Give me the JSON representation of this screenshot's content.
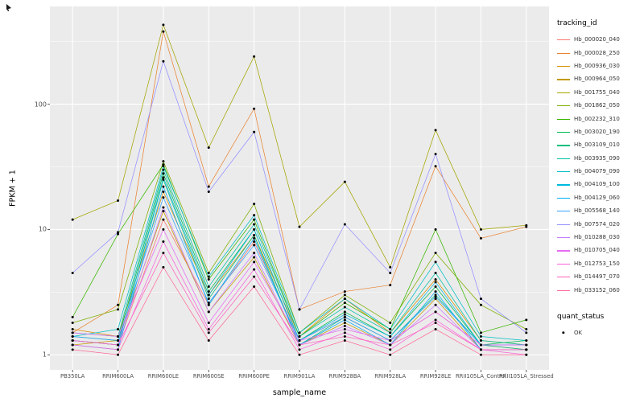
{
  "figure": {
    "panel_bg": "#EBEBEB",
    "grid_major": "#FFFFFF",
    "grid_minor": "#F7F7F7",
    "tick_color": "#333333",
    "point_color": "#000000"
  },
  "chart_data": {
    "type": "line",
    "title": "",
    "xlabel": "sample_name",
    "ylabel": "FPKM + 1",
    "y_scale": "log10",
    "ylim": [
      1,
      500
    ],
    "y_ticks": [
      1,
      10,
      100
    ],
    "y_tick_labels": [
      "1",
      "10",
      "100"
    ],
    "grid": true,
    "legend_position": "right",
    "legend_title": "tracking_id",
    "point_legend": {
      "title": "quant_status",
      "items": [
        "OK"
      ]
    },
    "categories": [
      "PB350LA",
      "RRIM600LA",
      "RRIM600LE",
      "RRIM600SE",
      "RRIM600PE",
      "RRIM901LA",
      "RRIM928BA",
      "RRIM928LA",
      "RRIM928LE",
      "RRII105LA_Control",
      "RRII105LA_Stressed"
    ],
    "series": [
      {
        "name": "Hb_000020_040",
        "color": "#F8766D",
        "values": [
          1.3,
          1.2,
          12,
          2.5,
          8,
          1.3,
          2.0,
          1.3,
          2.2,
          1.2,
          1.1
        ]
      },
      {
        "name": "Hb_000028_250",
        "color": "#EA8331",
        "values": [
          1.5,
          2.5,
          380,
          22,
          92,
          2.3,
          3.2,
          3.6,
          32,
          8.5,
          10.5
        ]
      },
      {
        "name": "Hb_000936_030",
        "color": "#D89000",
        "values": [
          1.6,
          1.4,
          20,
          3.0,
          9,
          1.4,
          2.8,
          1.5,
          4.0,
          1.3,
          1.2
        ]
      },
      {
        "name": "Hb_000964_050",
        "color": "#C49A00",
        "values": [
          1.2,
          1.3,
          14,
          2.2,
          6,
          1.2,
          1.8,
          1.2,
          2.8,
          1.1,
          1.1
        ]
      },
      {
        "name": "Hb_001755_040",
        "color": "#A3A500",
        "values": [
          12,
          17,
          430,
          45,
          240,
          10.5,
          24,
          5.0,
          62,
          10,
          10.8
        ]
      },
      {
        "name": "Hb_001862_050",
        "color": "#7CAE00",
        "values": [
          1.8,
          2.3,
          35,
          4.5,
          16,
          1.5,
          3.0,
          1.8,
          6.5,
          2.5,
          1.6
        ]
      },
      {
        "name": "Hb_002232_310",
        "color": "#39B600",
        "values": [
          2.0,
          9.2,
          33,
          4.0,
          12,
          1.4,
          2.6,
          1.6,
          10,
          1.5,
          1.9
        ]
      },
      {
        "name": "Hb_003020_190",
        "color": "#00BB4E",
        "values": [
          1.4,
          1.3,
          28,
          3.2,
          10,
          1.3,
          2.2,
          1.4,
          3.5,
          1.2,
          1.3
        ]
      },
      {
        "name": "Hb_003109_010",
        "color": "#00BF7D",
        "values": [
          1.3,
          1.2,
          25,
          2.8,
          9,
          1.2,
          2.0,
          1.3,
          3.0,
          1.2,
          1.1
        ]
      },
      {
        "name": "Hb_003935_090",
        "color": "#00C1A3",
        "values": [
          1.5,
          1.4,
          30,
          3.5,
          11,
          1.4,
          2.4,
          1.5,
          4.5,
          1.3,
          1.2
        ]
      },
      {
        "name": "Hb_004079_090",
        "color": "#00BFC4",
        "values": [
          1.4,
          1.6,
          32,
          4.2,
          13,
          1.5,
          2.8,
          1.6,
          5.5,
          1.4,
          1.3
        ]
      },
      {
        "name": "Hb_004109_100",
        "color": "#00BAE0",
        "values": [
          1.3,
          1.2,
          26,
          3.0,
          10,
          1.3,
          2.1,
          1.4,
          3.8,
          1.2,
          1.2
        ]
      },
      {
        "name": "Hb_004129_060",
        "color": "#00B0F6",
        "values": [
          1.2,
          1.1,
          22,
          2.5,
          8.5,
          1.2,
          1.9,
          1.2,
          3.2,
          1.1,
          1.1
        ]
      },
      {
        "name": "Hb_005568_140",
        "color": "#35A2FF",
        "values": [
          1.4,
          1.3,
          18,
          2.6,
          7.5,
          1.3,
          2.0,
          1.3,
          2.9,
          1.2,
          1.2
        ]
      },
      {
        "name": "Hb_007574_020",
        "color": "#9590FF",
        "values": [
          4.5,
          9.5,
          220,
          20,
          60,
          2.3,
          11,
          4.5,
          40,
          2.8,
          1.5
        ]
      },
      {
        "name": "Hb_010288_030",
        "color": "#C77CFF",
        "values": [
          1.3,
          1.2,
          15,
          2.2,
          6.5,
          1.2,
          1.7,
          1.2,
          2.5,
          1.1,
          1.1
        ]
      },
      {
        "name": "Hb_010705_040",
        "color": "#E76BF3",
        "values": [
          1.5,
          1.4,
          10,
          1.8,
          5.5,
          1.3,
          1.6,
          1.3,
          2.2,
          1.2,
          1.2
        ]
      },
      {
        "name": "Hb_012753_150",
        "color": "#FA62DB",
        "values": [
          1.2,
          1.1,
          8,
          1.6,
          4.8,
          1.1,
          1.5,
          1.1,
          1.9,
          1.1,
          1.0
        ]
      },
      {
        "name": "Hb_014497_070",
        "color": "#FF62BC",
        "values": [
          1.3,
          1.2,
          6.5,
          1.5,
          4.2,
          1.2,
          1.4,
          1.2,
          1.8,
          1.1,
          1.1
        ]
      },
      {
        "name": "Hb_033152_060",
        "color": "#FF6A98",
        "values": [
          1.1,
          1.0,
          5.0,
          1.3,
          3.5,
          1.0,
          1.3,
          1.0,
          1.6,
          1.0,
          1.0
        ]
      }
    ]
  }
}
